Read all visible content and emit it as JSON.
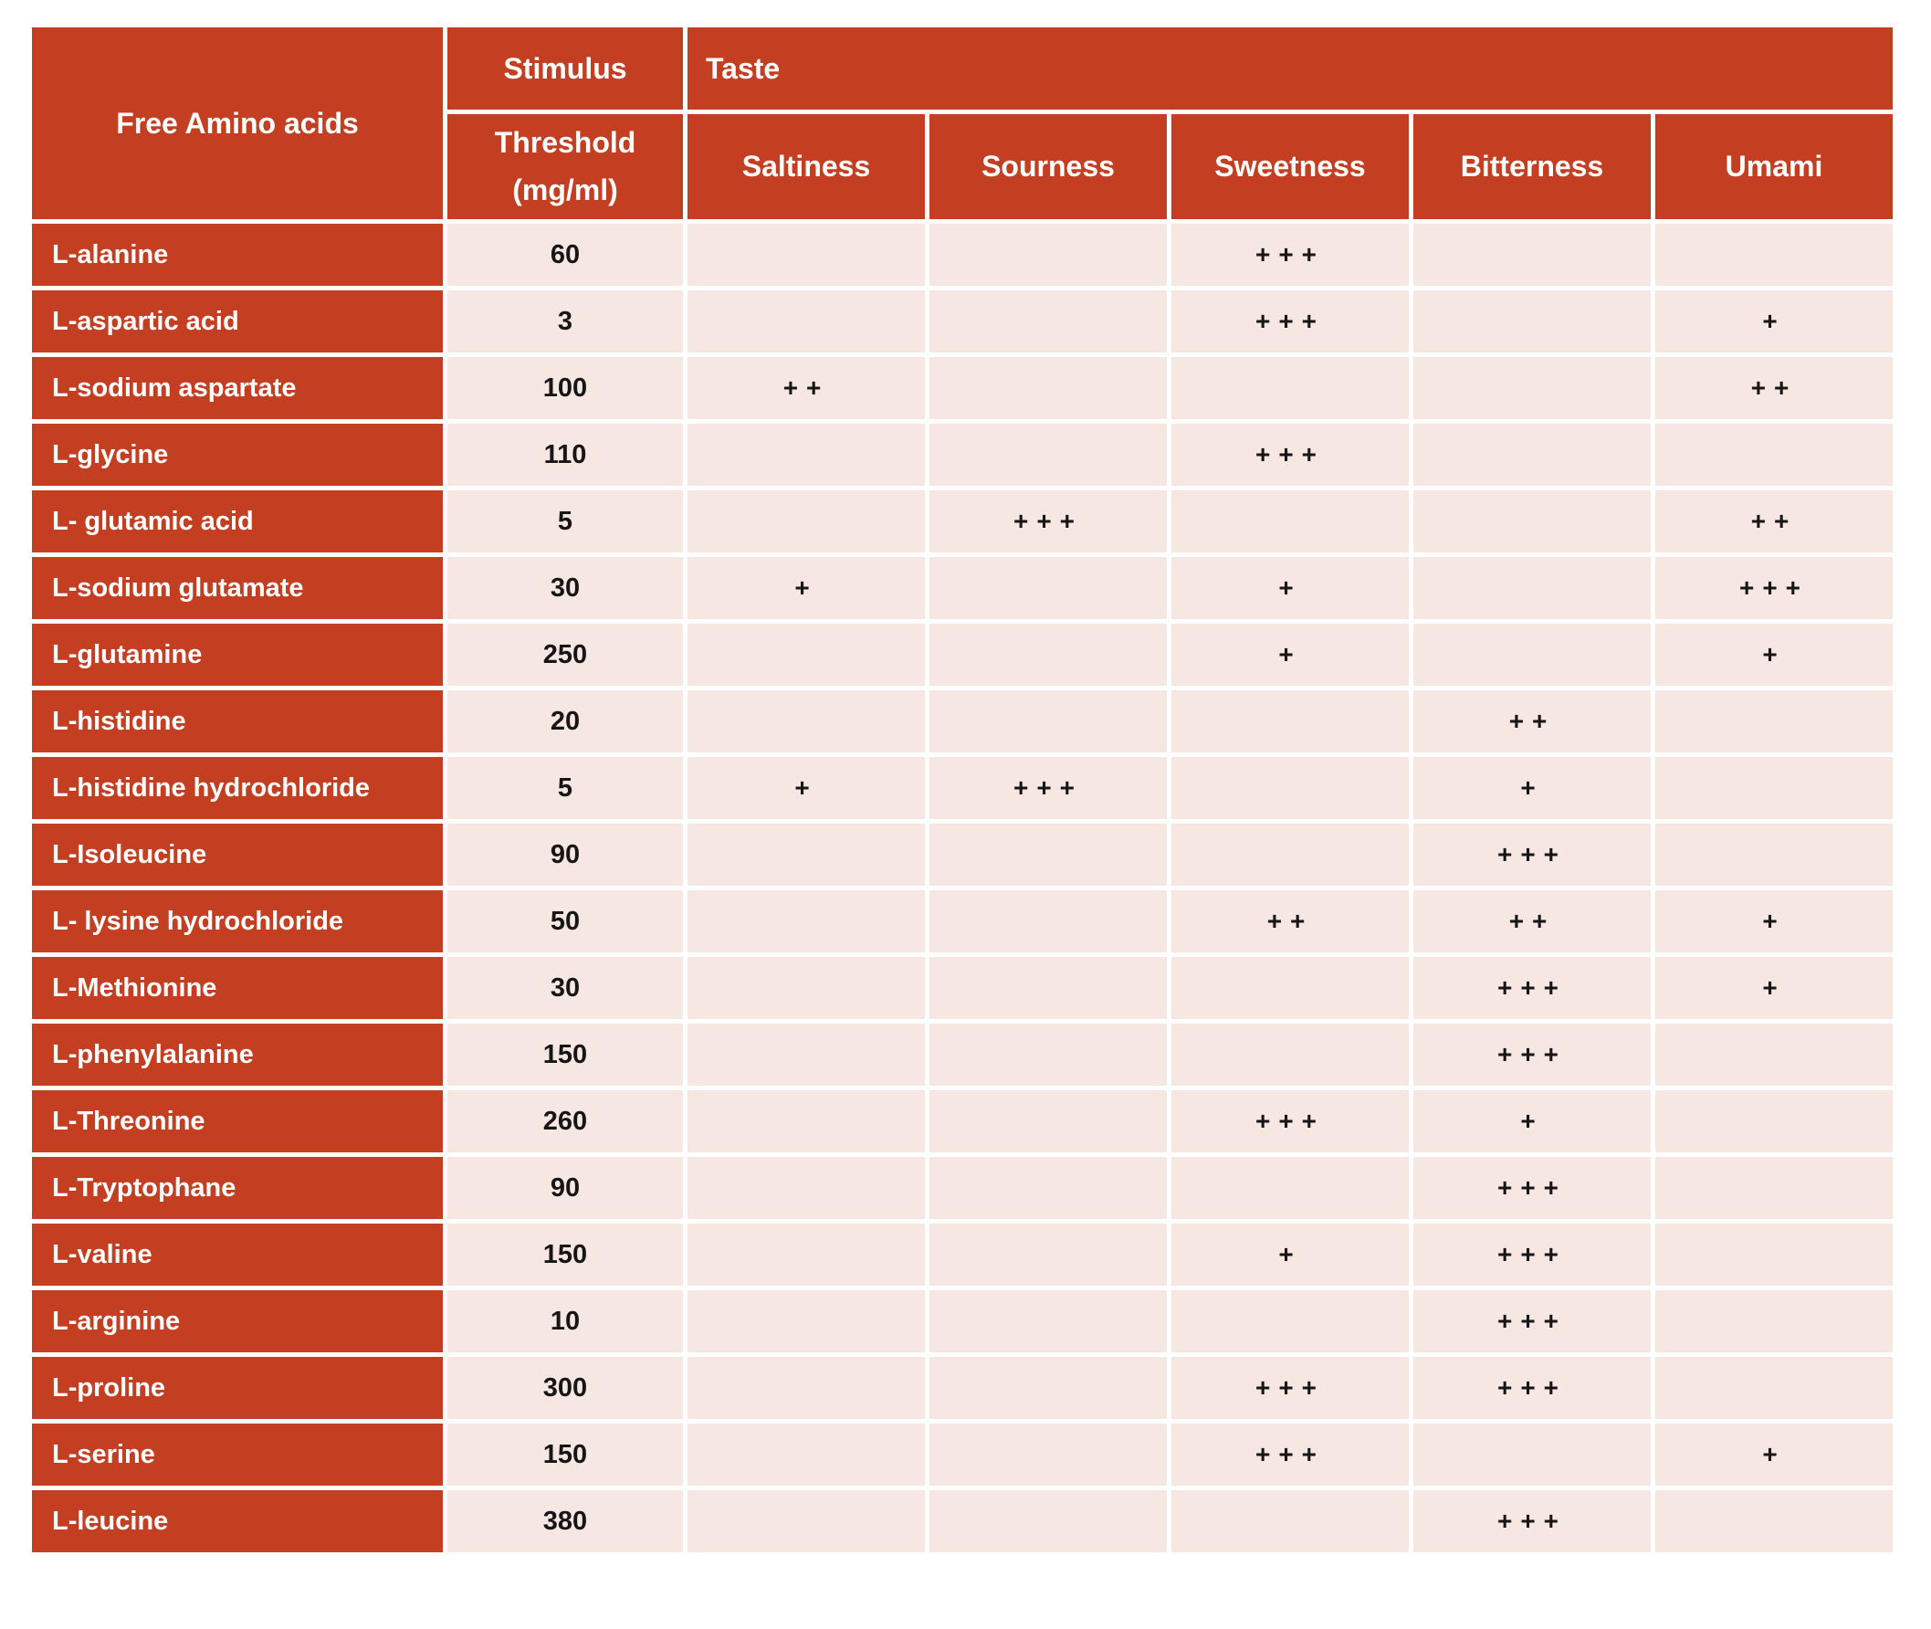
{
  "chart_data": {
    "type": "table",
    "header": {
      "col1": "Free Amino acids",
      "stimulus": "Stimulus",
      "threshold_line1": "Threshold",
      "threshold_line2": "(mg/ml)",
      "taste_group": "Taste",
      "taste_columns": [
        "Saltiness",
        "Sourness",
        "Sweetness",
        "Bitterness",
        "Umami"
      ]
    },
    "rows": [
      {
        "name": "L-alanine",
        "threshold": "60",
        "saltiness": "",
        "sourness": "",
        "sweetness": "+++",
        "bitterness": "",
        "umami": ""
      },
      {
        "name": "L-aspartic acid",
        "threshold": "3",
        "saltiness": "",
        "sourness": "",
        "sweetness": "+++",
        "bitterness": "",
        "umami": "+"
      },
      {
        "name": "L-sodium aspartate",
        "threshold": "100",
        "saltiness": "++",
        "sourness": "",
        "sweetness": "",
        "bitterness": "",
        "umami": "++"
      },
      {
        "name": "L-glycine",
        "threshold": "110",
        "saltiness": "",
        "sourness": "",
        "sweetness": "+++",
        "bitterness": "",
        "umami": ""
      },
      {
        "name": "L- glutamic acid",
        "threshold": "5",
        "saltiness": "",
        "sourness": "+++",
        "sweetness": "",
        "bitterness": "",
        "umami": "++"
      },
      {
        "name": "L-sodium glutamate",
        "threshold": "30",
        "saltiness": "+",
        "sourness": "",
        "sweetness": "+",
        "bitterness": "",
        "umami": "+++"
      },
      {
        "name": "L-glutamine",
        "threshold": "250",
        "saltiness": "",
        "sourness": "",
        "sweetness": "+",
        "bitterness": "",
        "umami": "+"
      },
      {
        "name": "L-histidine",
        "threshold": "20",
        "saltiness": "",
        "sourness": "",
        "sweetness": "",
        "bitterness": "++",
        "umami": ""
      },
      {
        "name": "L-histidine hydrochloride",
        "threshold": "5",
        "saltiness": "+",
        "sourness": "+++",
        "sweetness": "",
        "bitterness": "+",
        "umami": ""
      },
      {
        "name": "L-Isoleucine",
        "threshold": "90",
        "saltiness": "",
        "sourness": "",
        "sweetness": "",
        "bitterness": "+++",
        "umami": ""
      },
      {
        "name": "L- lysine hydrochloride",
        "threshold": "50",
        "saltiness": "",
        "sourness": "",
        "sweetness": "++",
        "bitterness": "++",
        "umami": "+"
      },
      {
        "name": "L-Methionine",
        "threshold": "30",
        "saltiness": "",
        "sourness": "",
        "sweetness": "",
        "bitterness": "+++",
        "umami": "+"
      },
      {
        "name": "L-phenylalanine",
        "threshold": "150",
        "saltiness": "",
        "sourness": "",
        "sweetness": "",
        "bitterness": "+++",
        "umami": ""
      },
      {
        "name": "L-Threonine",
        "threshold": "260",
        "saltiness": "",
        "sourness": "",
        "sweetness": "+++",
        "bitterness": "+",
        "umami": ""
      },
      {
        "name": "L-Tryptophane",
        "threshold": "90",
        "saltiness": "",
        "sourness": "",
        "sweetness": "",
        "bitterness": "+++",
        "umami": ""
      },
      {
        "name": "L-valine",
        "threshold": "150",
        "saltiness": "",
        "sourness": "",
        "sweetness": "+",
        "bitterness": "+++",
        "umami": ""
      },
      {
        "name": "L-arginine",
        "threshold": "10",
        "saltiness": "",
        "sourness": "",
        "sweetness": "",
        "bitterness": "+++",
        "umami": ""
      },
      {
        "name": "L-proline",
        "threshold": "300",
        "saltiness": "",
        "sourness": "",
        "sweetness": "+++",
        "bitterness": "+++",
        "umami": ""
      },
      {
        "name": "L-serine",
        "threshold": "150",
        "saltiness": "",
        "sourness": "",
        "sweetness": "+++",
        "bitterness": "",
        "umami": "+"
      },
      {
        "name": "L-leucine",
        "threshold": "380",
        "saltiness": "",
        "sourness": "",
        "sweetness": "",
        "bitterness": "+++",
        "umami": ""
      }
    ]
  },
  "colors": {
    "header_red": "#c43e22",
    "cell_pink": "#f7e7e3",
    "mark_black": "#161616",
    "gap_white": "#ffffff"
  }
}
